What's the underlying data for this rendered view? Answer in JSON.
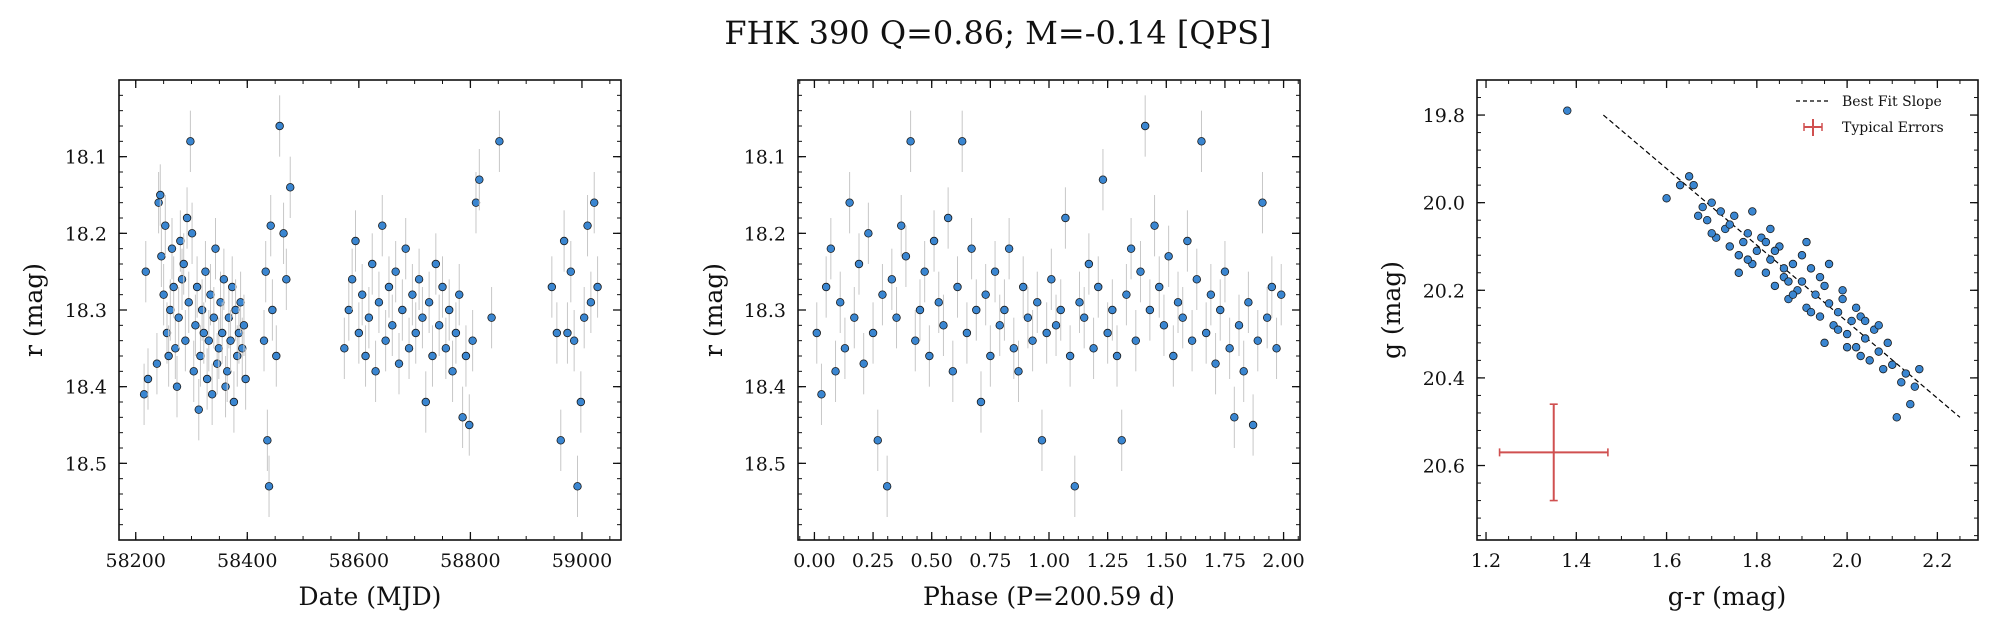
{
  "figure": {
    "title": "FHK 390  Q=0.86; M=-0.14 [QPS]",
    "colors": {
      "point": "#3a86d1",
      "edge": "#1a1a1a",
      "errorbar": "#c7c7c7",
      "fit": "#000000",
      "typical": "#d05050"
    }
  },
  "chart_data": [
    {
      "type": "scatter",
      "panel": "light-curve-time",
      "xlabel": "Date (MJD)",
      "ylabel": "r (mag)",
      "xlim": [
        58170,
        59070
      ],
      "ylim": [
        18.6,
        18.0
      ],
      "y_inverted": true,
      "xticks": [
        58200,
        58400,
        58600,
        58800,
        59000
      ],
      "xtick_labels": [
        "58200",
        "58400",
        "58600",
        "58800",
        "59000"
      ],
      "yticks": [
        18.1,
        18.2,
        18.3,
        18.4,
        18.5
      ],
      "ytick_labels": [
        "18.1",
        "18.2",
        "18.3",
        "18.4",
        "18.5"
      ],
      "errorbar_half_height": 0.04,
      "series": [
        {
          "x": [
            58215,
            58218,
            58222,
            58238,
            58241,
            58244,
            58246,
            58250,
            58253,
            58256,
            58259,
            58262,
            58265,
            58268,
            58271,
            58274,
            58277,
            58280,
            58283,
            58286,
            58289,
            58292,
            58295,
            58298,
            58301,
            58304,
            58307,
            58310,
            58313,
            58316,
            58319,
            58322,
            58325,
            58328,
            58331,
            58334,
            58337,
            58340,
            58343,
            58346,
            58349,
            58352,
            58355,
            58358,
            58361,
            58364,
            58367,
            58370,
            58373,
            58376,
            58379,
            58382,
            58385,
            58388,
            58391,
            58394,
            58397,
            58430,
            58433,
            58436,
            58439,
            58442,
            58445,
            58452,
            58458,
            58465,
            58470,
            58477,
            58574,
            58582,
            58588,
            58594,
            58600,
            58606,
            58612,
            58618,
            58624,
            58630,
            58636,
            58642,
            58648,
            58654,
            58660,
            58666,
            58672,
            58678,
            58684,
            58690,
            58696,
            58702,
            58708,
            58714,
            58720,
            58726,
            58732,
            58738,
            58744,
            58750,
            58756,
            58762,
            58768,
            58774,
            58780,
            58786,
            58792,
            58798,
            58804,
            58810,
            58816,
            58838,
            58852,
            58946,
            58955,
            58962,
            58968,
            58974,
            58980,
            58986,
            58992,
            58998,
            59004,
            59010,
            59016,
            59022,
            59028
          ],
          "y": [
            18.41,
            18.25,
            18.39,
            18.37,
            18.16,
            18.15,
            18.23,
            18.28,
            18.19,
            18.33,
            18.36,
            18.3,
            18.22,
            18.27,
            18.35,
            18.4,
            18.31,
            18.21,
            18.26,
            18.24,
            18.34,
            18.18,
            18.29,
            18.08,
            18.2,
            18.38,
            18.32,
            18.27,
            18.43,
            18.36,
            18.3,
            18.33,
            18.25,
            18.39,
            18.34,
            18.28,
            18.41,
            18.31,
            18.22,
            18.37,
            18.35,
            18.29,
            18.33,
            18.26,
            18.4,
            18.38,
            18.31,
            18.34,
            18.27,
            18.42,
            18.3,
            18.36,
            18.33,
            18.29,
            18.35,
            18.32,
            18.39,
            18.34,
            18.25,
            18.47,
            18.53,
            18.19,
            18.3,
            18.36,
            18.06,
            18.2,
            18.26,
            18.14,
            18.35,
            18.3,
            18.26,
            18.21,
            18.33,
            18.28,
            18.36,
            18.31,
            18.24,
            18.38,
            18.29,
            18.19,
            18.34,
            18.27,
            18.32,
            18.25,
            18.37,
            18.3,
            18.22,
            18.35,
            18.28,
            18.33,
            18.26,
            18.31,
            18.42,
            18.29,
            18.36,
            18.24,
            18.32,
            18.27,
            18.35,
            18.3,
            18.38,
            18.33,
            18.28,
            18.44,
            18.36,
            18.45,
            18.34,
            18.16,
            18.13,
            18.31,
            18.08,
            18.27,
            18.33,
            18.47,
            18.21,
            18.33,
            18.25,
            18.34,
            18.53,
            18.42,
            18.31,
            18.19,
            18.29,
            18.16,
            18.27
          ]
        }
      ]
    },
    {
      "type": "scatter",
      "panel": "phase-folded",
      "xlabel": "Phase (P=200.59 d)",
      "ylabel": "r (mag)",
      "xlim": [
        -0.07,
        2.07
      ],
      "ylim": [
        18.6,
        18.0
      ],
      "y_inverted": true,
      "xticks": [
        0.0,
        0.25,
        0.5,
        0.75,
        1.0,
        1.25,
        1.5,
        1.75,
        2.0
      ],
      "xtick_labels": [
        "0.00",
        "0.25",
        "0.50",
        "0.75",
        "1.00",
        "1.25",
        "1.50",
        "1.75",
        "2.00"
      ],
      "yticks": [
        18.1,
        18.2,
        18.3,
        18.4,
        18.5
      ],
      "ytick_labels": [
        "18.1",
        "18.2",
        "18.3",
        "18.4",
        "18.5"
      ],
      "errorbar_half_height": 0.04,
      "series": [
        {
          "x": [
            0.01,
            0.03,
            0.05,
            0.07,
            0.09,
            0.11,
            0.13,
            0.15,
            0.17,
            0.19,
            0.21,
            0.23,
            0.25,
            0.27,
            0.29,
            0.31,
            0.33,
            0.35,
            0.37,
            0.39,
            0.41,
            0.43,
            0.45,
            0.47,
            0.49,
            0.51,
            0.53,
            0.55,
            0.57,
            0.59,
            0.61,
            0.63,
            0.65,
            0.67,
            0.69,
            0.71,
            0.73,
            0.75,
            0.77,
            0.79,
            0.81,
            0.83,
            0.85,
            0.87,
            0.89,
            0.91,
            0.93,
            0.95,
            0.97,
            0.99,
            1.01,
            1.03,
            1.05,
            1.07,
            1.09,
            1.11,
            1.13,
            1.15,
            1.17,
            1.19,
            1.21,
            1.23,
            1.25,
            1.27,
            1.29,
            1.31,
            1.33,
            1.35,
            1.37,
            1.39,
            1.41,
            1.43,
            1.45,
            1.47,
            1.49,
            1.51,
            1.53,
            1.55,
            1.57,
            1.59,
            1.61,
            1.63,
            1.65,
            1.67,
            1.69,
            1.71,
            1.73,
            1.75,
            1.77,
            1.79,
            1.81,
            1.83,
            1.85,
            1.87,
            1.89,
            1.91,
            1.93,
            1.95,
            1.97,
            1.99
          ],
          "y": [
            18.33,
            18.41,
            18.27,
            18.22,
            18.38,
            18.29,
            18.35,
            18.16,
            18.31,
            18.24,
            18.37,
            18.2,
            18.33,
            18.47,
            18.28,
            18.53,
            18.26,
            18.31,
            18.19,
            18.23,
            18.08,
            18.34,
            18.3,
            18.25,
            18.36,
            18.21,
            18.29,
            18.32,
            18.18,
            18.38,
            18.27,
            18.08,
            18.33,
            18.22,
            18.3,
            18.42,
            18.28,
            18.36,
            18.25,
            18.32,
            18.3,
            18.22,
            18.35,
            18.38,
            18.27,
            18.31,
            18.34,
            18.29,
            18.47,
            18.33,
            18.26,
            18.32,
            18.3,
            18.18,
            18.36,
            18.53,
            18.29,
            18.31,
            18.24,
            18.35,
            18.27,
            18.13,
            18.33,
            18.3,
            18.36,
            18.47,
            18.28,
            18.22,
            18.34,
            18.25,
            18.06,
            18.3,
            18.19,
            18.27,
            18.32,
            18.23,
            18.36,
            18.29,
            18.31,
            18.21,
            18.34,
            18.26,
            18.08,
            18.33,
            18.28,
            18.37,
            18.3,
            18.25,
            18.35,
            18.44,
            18.32,
            18.38,
            18.29,
            18.45,
            18.34,
            18.16,
            18.31,
            18.27,
            18.35,
            18.28
          ]
        }
      ]
    },
    {
      "type": "scatter",
      "panel": "color-magnitude",
      "xlabel": "g-r (mag)",
      "ylabel": "g (mag)",
      "xlim": [
        1.18,
        2.29
      ],
      "ylim": [
        20.77,
        19.72
      ],
      "y_inverted": true,
      "xticks": [
        1.2,
        1.4,
        1.6,
        1.8,
        2.0,
        2.2
      ],
      "xtick_labels": [
        "1.2",
        "1.4",
        "1.6",
        "1.8",
        "2.0",
        "2.2"
      ],
      "yticks": [
        19.8,
        20.0,
        20.2,
        20.4,
        20.6
      ],
      "ytick_labels": [
        "19.8",
        "20.0",
        "20.2",
        "20.4",
        "20.6"
      ],
      "legend": {
        "placement": "upper-right",
        "entries": [
          "Best Fit Slope",
          "Typical Errors"
        ]
      },
      "best_fit": {
        "x": [
          1.46,
          2.25
        ],
        "y": [
          19.8,
          20.49
        ]
      },
      "typical_error": {
        "x": 1.35,
        "y": 20.57,
        "xerr": 0.12,
        "yerr": 0.11
      },
      "series": [
        {
          "x": [
            1.38,
            1.6,
            1.63,
            1.65,
            1.66,
            1.67,
            1.68,
            1.69,
            1.7,
            1.71,
            1.72,
            1.73,
            1.74,
            1.75,
            1.76,
            1.77,
            1.78,
            1.79,
            1.8,
            1.81,
            1.82,
            1.83,
            1.84,
            1.85,
            1.86,
            1.87,
            1.88,
            1.89,
            1.9,
            1.91,
            1.92,
            1.93,
            1.94,
            1.95,
            1.96,
            1.97,
            1.98,
            1.99,
            2.0,
            2.01,
            2.02,
            2.03,
            2.04,
            2.05,
            2.06,
            2.07,
            2.08,
            2.09,
            2.1,
            2.11,
            2.12,
            2.13,
            2.14,
            2.15,
            2.16,
            1.74,
            1.78,
            1.82,
            1.86,
            1.9,
            1.94,
            1.98,
            2.02,
            1.7,
            1.76,
            1.84,
            1.88,
            1.92,
            1.96,
            2.0,
            2.04,
            1.79,
            1.83,
            1.87,
            1.91,
            1.95,
            1.99,
            2.03,
            2.07
          ],
          "y": [
            19.79,
            19.99,
            19.96,
            19.94,
            19.96,
            20.03,
            20.01,
            20.04,
            20.0,
            20.08,
            20.02,
            20.06,
            20.1,
            20.03,
            20.12,
            20.09,
            20.07,
            20.14,
            20.11,
            20.08,
            20.16,
            20.13,
            20.19,
            20.1,
            20.17,
            20.22,
            20.14,
            20.2,
            20.18,
            20.24,
            20.15,
            20.21,
            20.26,
            20.19,
            20.23,
            20.28,
            20.25,
            20.22,
            20.3,
            20.27,
            20.33,
            20.26,
            20.31,
            20.36,
            20.29,
            20.34,
            20.38,
            20.32,
            20.37,
            20.49,
            20.41,
            20.39,
            20.46,
            20.42,
            20.38,
            20.05,
            20.13,
            20.09,
            20.15,
            20.12,
            20.17,
            20.29,
            20.24,
            20.07,
            20.16,
            20.11,
            20.21,
            20.25,
            20.14,
            20.33,
            20.27,
            20.02,
            20.06,
            20.18,
            20.09,
            20.32,
            20.2,
            20.35,
            20.28
          ]
        }
      ]
    }
  ]
}
